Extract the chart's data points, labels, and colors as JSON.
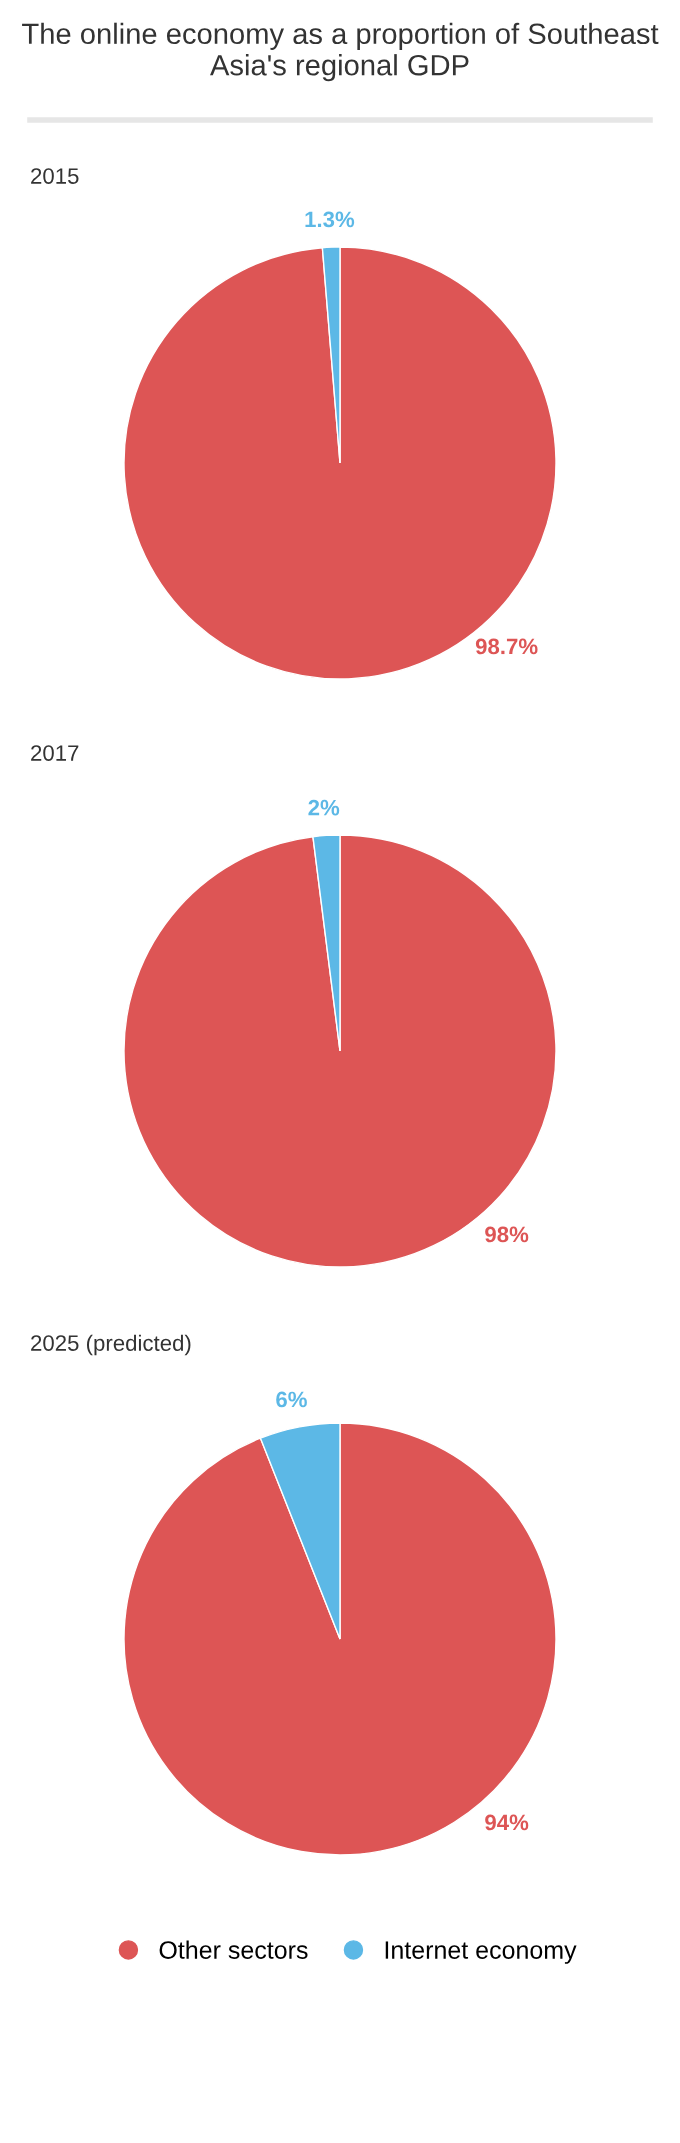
{
  "chart_data": [
    {
      "type": "pie",
      "title": "The online economy as a proportion of Southeast Asia's regional GDP",
      "subtitle": "2015",
      "categories": [
        null,
        null
      ],
      "values": [
        98.7,
        1.3
      ],
      "colors": [
        "#dd5555",
        "#5cb8e6"
      ],
      "data_labels": true,
      "value_labels": [
        "98.7%",
        "1.3%"
      ]
    },
    {
      "type": "pie",
      "subtitle": "2017",
      "categories": [
        null,
        null
      ],
      "values": [
        98,
        2
      ],
      "colors": [
        "#dd5555",
        "#5cb8e6"
      ],
      "data_labels": true,
      "value_labels": [
        "98%",
        "2%"
      ]
    },
    {
      "type": "pie",
      "subtitle": "2025 (predicted)",
      "categories": [
        "Other sectors",
        "Internet economy"
      ],
      "values": [
        94,
        6
      ],
      "colors": [
        "#dd5555",
        "#5cb8e6"
      ],
      "data_labels": true,
      "value_labels": [
        "94%",
        "6%"
      ],
      "legend": "bottom"
    }
  ]
}
